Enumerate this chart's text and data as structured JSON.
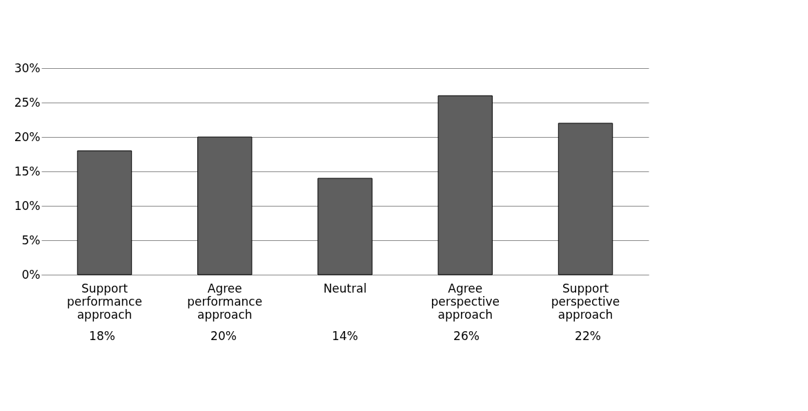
{
  "chart_data": {
    "type": "bar",
    "categories": [
      "Support performance approach",
      "Agree performance approach",
      "Neutral",
      "Agree perspective approach",
      "Support perspective approach"
    ],
    "values": [
      18,
      20,
      14,
      26,
      22
    ],
    "color": "#5f5f5f",
    "value_labels": [
      "18%",
      "20%",
      "14%",
      "26%",
      "22%"
    ],
    "ylim": [
      0,
      30
    ],
    "yticks": [
      {
        "value": 0,
        "label": "0%"
      },
      {
        "value": 5,
        "label": "5%"
      },
      {
        "value": 10,
        "label": "10%"
      },
      {
        "value": 15,
        "label": "15%"
      },
      {
        "value": 20,
        "label": "20%"
      },
      {
        "value": 25,
        "label": "25%"
      },
      {
        "value": 30,
        "label": "30%"
      }
    ],
    "grid": "y"
  }
}
